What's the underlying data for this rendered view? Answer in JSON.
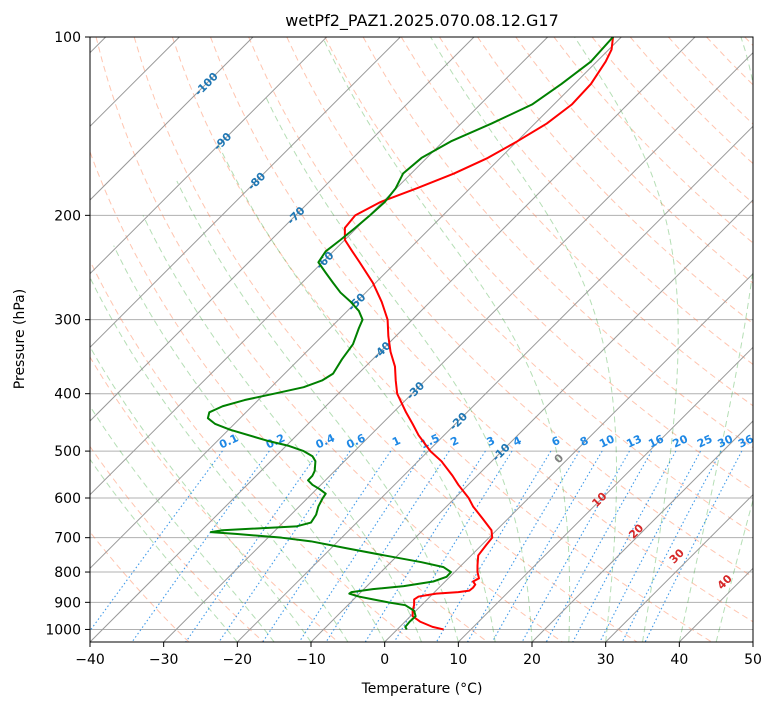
{
  "chart_data": {
    "type": "line",
    "title": "wetPf2_PAZ1.2025.070.08.12.G17",
    "xlabel": "Temperature (°C)",
    "ylabel": "Pressure (hPa)",
    "xlim": [
      -40,
      50
    ],
    "ylim": [
      1050,
      100
    ],
    "y_scale": "log",
    "grid": true,
    "x_ticks": [
      -40,
      -30,
      -20,
      -10,
      0,
      10,
      20,
      30,
      40,
      50
    ],
    "y_ticks": [
      100,
      200,
      300,
      400,
      500,
      600,
      700,
      800,
      900,
      1000
    ],
    "series": [
      {
        "role": "temperature",
        "color": "#ff0000",
        "points": [
          [
            1000,
            8.0
          ],
          [
            990,
            6.5
          ],
          [
            970,
            4.8
          ],
          [
            950,
            3.8
          ],
          [
            930,
            3.8
          ],
          [
            910,
            4.0
          ],
          [
            890,
            4.0
          ],
          [
            880,
            4.6
          ],
          [
            870,
            7.0
          ],
          [
            865,
            10.0
          ],
          [
            860,
            11.5
          ],
          [
            850,
            12.0
          ],
          [
            840,
            12.3
          ],
          [
            830,
            12.0
          ],
          [
            820,
            12.8
          ],
          [
            800,
            12.6
          ],
          [
            780,
            12.6
          ],
          [
            750,
            12.7
          ],
          [
            720,
            13.8
          ],
          [
            700,
            14.6
          ],
          [
            680,
            14.5
          ],
          [
            650,
            13.3
          ],
          [
            620,
            12.0
          ],
          [
            600,
            11.4
          ],
          [
            570,
            10.0
          ],
          [
            550,
            9.2
          ],
          [
            520,
            7.7
          ],
          [
            500,
            6.2
          ],
          [
            470,
            4.6
          ],
          [
            450,
            3.8
          ],
          [
            430,
            2.9
          ],
          [
            400,
            1.7
          ],
          [
            380,
            1.5
          ],
          [
            360,
            1.4
          ],
          [
            340,
            0.8
          ],
          [
            320,
            0.5
          ],
          [
            300,
            0.4
          ],
          [
            280,
            -0.4
          ],
          [
            260,
            -1.6
          ],
          [
            240,
            -3.4
          ],
          [
            230,
            -4.4
          ],
          [
            220,
            -5.4
          ],
          [
            210,
            -5.4
          ],
          [
            200,
            -4.0
          ],
          [
            190,
            -0.6
          ],
          [
            180,
            4.4
          ],
          [
            170,
            9.4
          ],
          [
            160,
            14.0
          ],
          [
            150,
            18.0
          ],
          [
            140,
            22.0
          ],
          [
            130,
            25.4
          ],
          [
            120,
            28.0
          ],
          [
            110,
            30.0
          ],
          [
            105,
            30.8
          ],
          [
            100,
            31.0
          ]
        ]
      },
      {
        "role": "dewpoint",
        "color": "#008000",
        "points": [
          [
            1000,
            3.0
          ],
          [
            990,
            2.8
          ],
          [
            970,
            3.4
          ],
          [
            950,
            4.2
          ],
          [
            930,
            4.0
          ],
          [
            910,
            2.8
          ],
          [
            900,
            0.5
          ],
          [
            890,
            -1.5
          ],
          [
            880,
            -3.5
          ],
          [
            870,
            -4.8
          ],
          [
            865,
            -4.5
          ],
          [
            855,
            -1.6
          ],
          [
            845,
            2.6
          ],
          [
            830,
            6.6
          ],
          [
            815,
            8.4
          ],
          [
            800,
            9.0
          ],
          [
            785,
            8.0
          ],
          [
            770,
            5.0
          ],
          [
            750,
            0.0
          ],
          [
            730,
            -5.0
          ],
          [
            710,
            -10.0
          ],
          [
            700,
            -14.0
          ],
          [
            690,
            -20.0
          ],
          [
            685,
            -23.6
          ],
          [
            680,
            -22.0
          ],
          [
            670,
            -12.0
          ],
          [
            660,
            -10.0
          ],
          [
            640,
            -9.3
          ],
          [
            620,
            -9.0
          ],
          [
            600,
            -8.4
          ],
          [
            590,
            -8.0
          ],
          [
            580,
            -8.8
          ],
          [
            570,
            -9.8
          ],
          [
            560,
            -10.4
          ],
          [
            550,
            -9.8
          ],
          [
            540,
            -9.5
          ],
          [
            520,
            -9.4
          ],
          [
            510,
            -9.8
          ],
          [
            500,
            -11.0
          ],
          [
            490,
            -13.0
          ],
          [
            480,
            -16.0
          ],
          [
            460,
            -21.0
          ],
          [
            450,
            -23.0
          ],
          [
            440,
            -24.0
          ],
          [
            430,
            -23.8
          ],
          [
            420,
            -22.0
          ],
          [
            410,
            -19.0
          ],
          [
            400,
            -15.0
          ],
          [
            390,
            -11.0
          ],
          [
            380,
            -8.5
          ],
          [
            370,
            -7.0
          ],
          [
            350,
            -5.8
          ],
          [
            330,
            -4.3
          ],
          [
            310,
            -3.5
          ],
          [
            300,
            -3.0
          ],
          [
            290,
            -3.5
          ],
          [
            280,
            -4.6
          ],
          [
            270,
            -6.0
          ],
          [
            260,
            -7.0
          ],
          [
            250,
            -8.0
          ],
          [
            240,
            -9.0
          ],
          [
            230,
            -8.0
          ],
          [
            220,
            -6.0
          ],
          [
            210,
            -4.0
          ],
          [
            200,
            -2.0
          ],
          [
            190,
            0.0
          ],
          [
            180,
            1.5
          ],
          [
            170,
            2.5
          ],
          [
            160,
            5.0
          ],
          [
            150,
            9.0
          ],
          [
            140,
            14.5
          ],
          [
            130,
            20.0
          ],
          [
            120,
            24.0
          ],
          [
            110,
            28.0
          ],
          [
            100,
            31.0
          ]
        ]
      }
    ],
    "isotherm_labels": [
      {
        "text": "-100",
        "value": -100,
        "p": 120
      },
      {
        "text": "-90",
        "value": -90,
        "p": 150
      },
      {
        "text": "-80",
        "value": -80,
        "p": 175
      },
      {
        "text": "-70",
        "value": -70,
        "p": 200
      },
      {
        "text": "-60",
        "value": -60,
        "p": 238
      },
      {
        "text": "-50",
        "value": -50,
        "p": 280
      },
      {
        "text": "-40",
        "value": -40,
        "p": 338
      },
      {
        "text": "-30",
        "value": -30,
        "p": 395
      },
      {
        "text": "-20",
        "value": -20,
        "p": 445
      },
      {
        "text": "-10",
        "value": -10,
        "p": 502
      }
    ],
    "mixing_ratio_labels": [
      "0.1",
      "0.2",
      "0.4",
      "0.6",
      "1",
      "1.5",
      "2",
      "3",
      "4",
      "6",
      "8",
      "10",
      "13",
      "16",
      "20",
      "25",
      "30",
      "36"
    ],
    "moist_adiabat_labels": [
      "0",
      "10",
      "20",
      "30",
      "40"
    ],
    "colors": {
      "temperature": "#ff0000",
      "dewpoint": "#008000",
      "isotherm": "#999999",
      "isotherm_label": "#1f77b4",
      "dry_adiabat": "#ff7f50",
      "moist_adiabat": "#2ca02c",
      "mixing_ratio": "#1e88e5",
      "moist_label": "#d62728",
      "gridline": "#b0b0b0"
    }
  }
}
